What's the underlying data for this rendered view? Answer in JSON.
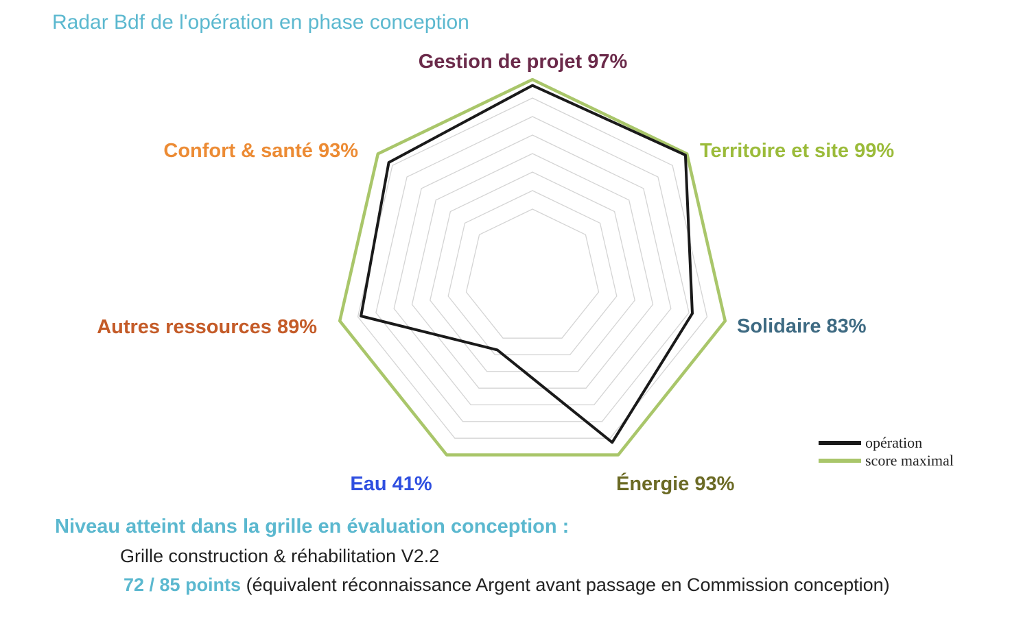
{
  "title": "Radar Bdf de l'opération en phase conception",
  "chart_data": {
    "type": "radar",
    "axes": [
      {
        "name": "Gestion de projet",
        "label": "Gestion de projet 97%",
        "color": "#6b2a4a"
      },
      {
        "name": "Territoire et site",
        "label": "Territoire et site 99%",
        "color": "#9bbb3a"
      },
      {
        "name": "Solidaire",
        "label": "Solidaire 83%",
        "color": "#3e6a82"
      },
      {
        "name": "Énergie",
        "label": "Énergie 93%",
        "color": "#6b6a24"
      },
      {
        "name": "Eau",
        "label": "Eau 41%",
        "color": "#2f4fe0"
      },
      {
        "name": "Autres ressources",
        "label": "Autres ressources 89%",
        "color": "#c45b28"
      },
      {
        "name": "Confort & santé",
        "label": "Confort & santé 93%",
        "color": "#ec8b34"
      }
    ],
    "series": [
      {
        "name": "opération",
        "values": [
          97,
          99,
          83,
          93,
          41,
          89,
          93
        ],
        "color": "#1a1a1a"
      },
      {
        "name": "score maximal",
        "values": [
          100,
          100,
          100,
          100,
          100,
          100,
          100
        ],
        "color": "#a9c66a"
      }
    ],
    "range": [
      0,
      100
    ],
    "grid_levels": 8,
    "legend_position": "bottom-right"
  },
  "legend": {
    "operation": "opération",
    "max": "score maximal"
  },
  "footer": {
    "title": "Niveau atteint dans la grille en évaluation conception :",
    "grid": "Grille construction & réhabilitation V2.2",
    "points_value": "72 / 85 points",
    "points_note": "(équivalent réconnaissance Argent avant passage en Commission conception)"
  }
}
